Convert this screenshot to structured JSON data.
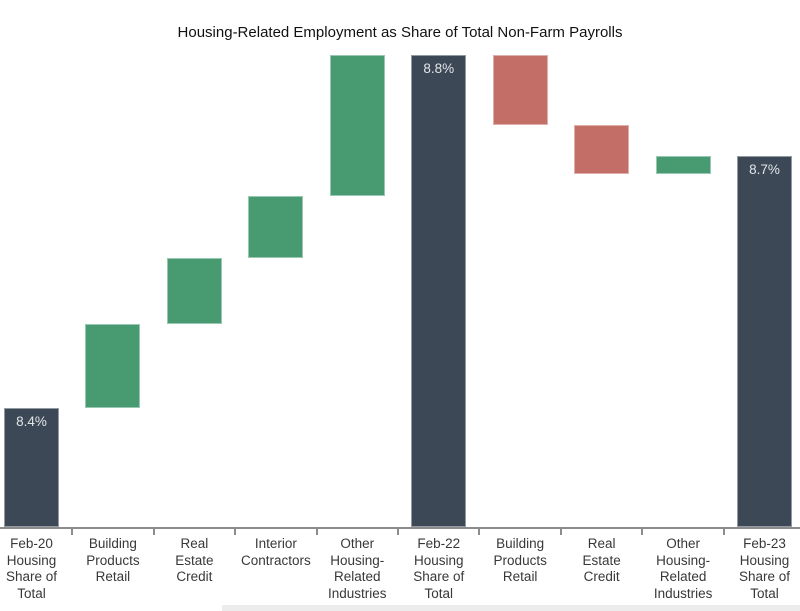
{
  "chart_data": {
    "type": "waterfall",
    "title": "Housing-Related Employment as Share of Total Non-Farm Payrolls",
    "ylim": [
      8.265,
      8.85
    ],
    "grid": false,
    "legend": false,
    "colors": {
      "total": "#3c4855",
      "increase": "#489a71",
      "decrease": "#c36f67",
      "axis": "#8c8c8c",
      "title_text": "#111111",
      "axis_label_text": "#383838",
      "value_label_text": "#e2e6e9",
      "bottom_band": "#ececec"
    },
    "categories": [
      "Feb-20 Housing Share of Total",
      "Building Products Retail",
      "Real Estate Credit",
      "Interior Contractors",
      "Other Housing-Related Industries",
      "Feb-22 Housing Share of Total",
      "Building Products Retail",
      "Real Estate Credit",
      "Other Housing-Related Industries",
      "Feb-23 Housing Share of Total"
    ],
    "bars": [
      {
        "category": "Feb-20 Housing Share of Total",
        "axis_label": "Feb-20\nHousing\nShare of\nTotal",
        "kind": "total",
        "from": 8.265,
        "to": 8.4,
        "value_label": "8.4%"
      },
      {
        "category": "Building Products Retail",
        "axis_label": "Building\nProducts\nRetail",
        "kind": "increase",
        "from": 8.4,
        "to": 8.495
      },
      {
        "category": "Real Estate Credit",
        "axis_label": "Real\nEstate\nCredit",
        "kind": "increase",
        "from": 8.495,
        "to": 8.57
      },
      {
        "category": "Interior Contractors",
        "axis_label": "Interior\nContractors",
        "kind": "increase",
        "from": 8.57,
        "to": 8.64
      },
      {
        "category": "Other Housing-Related Industries",
        "axis_label": "Other\nHousing-\nRelated\nIndustries",
        "kind": "increase",
        "from": 8.64,
        "to": 8.8
      },
      {
        "category": "Feb-22 Housing Share of Total",
        "axis_label": "Feb-22\nHousing\nShare of\nTotal",
        "kind": "total",
        "from": 8.265,
        "to": 8.8,
        "value_label": "8.8%"
      },
      {
        "category": "Building Products Retail",
        "axis_label": "Building\nProducts\nRetail",
        "kind": "decrease",
        "from": 8.8,
        "to": 8.72
      },
      {
        "category": "Real Estate Credit",
        "axis_label": "Real\nEstate\nCredit",
        "kind": "decrease",
        "from": 8.72,
        "to": 8.665
      },
      {
        "category": "Other Housing-Related Industries",
        "axis_label": "Other\nHousing-\nRelated\nIndustries",
        "kind": "increase",
        "from": 8.665,
        "to": 8.685
      },
      {
        "category": "Feb-23 Housing Share of Total",
        "axis_label": "Feb-23\nHousing\nShare of\nTotal",
        "kind": "total",
        "from": 8.265,
        "to": 8.685,
        "value_label": "8.7%"
      }
    ]
  }
}
